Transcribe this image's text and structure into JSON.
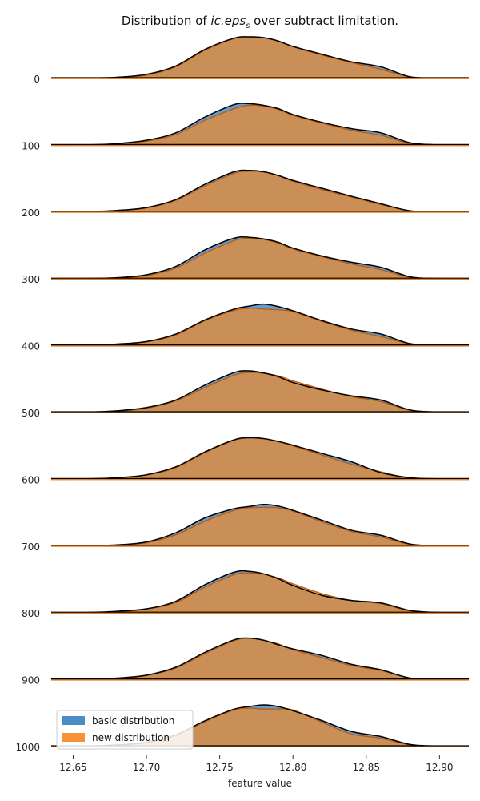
{
  "chart_data": {
    "type": "area",
    "title": "Distribution of ic.eps_s over subtract limitation.",
    "title_prefix": "Distribution of ",
    "title_var_main": "ic.eps",
    "title_var_sub": "s",
    "title_suffix": " over subtract limitation.",
    "xlabel": "feature value",
    "ylabel": "",
    "xlim": [
      12.635,
      12.92
    ],
    "x_ticks": [
      12.65,
      12.7,
      12.75,
      12.8,
      12.85,
      12.9
    ],
    "x_tick_labels": [
      "12.65",
      "12.70",
      "12.75",
      "12.80",
      "12.85",
      "12.90"
    ],
    "x": [
      12.64,
      12.66,
      12.68,
      12.7,
      12.72,
      12.74,
      12.76,
      12.77,
      12.78,
      12.79,
      12.8,
      12.82,
      12.84,
      12.86,
      12.88,
      12.9,
      12.92
    ],
    "legend": {
      "position": "lower-left",
      "entries": [
        {
          "label": "basic distribution",
          "color": "#4a8cc4"
        },
        {
          "label": "new distribution",
          "color": "#f5923a"
        }
      ]
    },
    "colors": {
      "basic": "#3a7fbf",
      "new": "#f08a2a",
      "overlap": "#c98c55",
      "outline": "#000000",
      "new_line": "#b85a10",
      "baseline": "#e67e22"
    },
    "ridges": [
      {
        "label": "0",
        "basic": [
          0,
          0.01,
          0.03,
          0.1,
          0.3,
          0.7,
          0.97,
          1.0,
          0.98,
          0.9,
          0.77,
          0.58,
          0.4,
          0.28,
          0.04,
          0.01,
          0
        ],
        "new": [
          0,
          0.01,
          0.02,
          0.08,
          0.28,
          0.68,
          0.96,
          1.0,
          0.98,
          0.89,
          0.76,
          0.56,
          0.38,
          0.22,
          0.03,
          0,
          0
        ]
      },
      {
        "label": "100",
        "basic": [
          0,
          0.01,
          0.04,
          0.12,
          0.3,
          0.68,
          0.98,
          1.0,
          0.96,
          0.88,
          0.74,
          0.55,
          0.4,
          0.3,
          0.06,
          0.01,
          0
        ],
        "new": [
          0,
          0.01,
          0.03,
          0.1,
          0.26,
          0.6,
          0.88,
          0.96,
          0.94,
          0.86,
          0.72,
          0.53,
          0.36,
          0.24,
          0.04,
          0.01,
          0
        ]
      },
      {
        "label": "200",
        "basic": [
          0,
          0.01,
          0.04,
          0.11,
          0.3,
          0.67,
          0.97,
          1.0,
          0.97,
          0.88,
          0.76,
          0.57,
          0.38,
          0.2,
          0.03,
          0.01,
          0
        ],
        "new": [
          0,
          0.01,
          0.03,
          0.1,
          0.28,
          0.63,
          0.93,
          0.98,
          0.96,
          0.87,
          0.74,
          0.54,
          0.36,
          0.18,
          0.03,
          0.01,
          0
        ]
      },
      {
        "label": "300",
        "basic": [
          0,
          0.01,
          0.03,
          0.1,
          0.3,
          0.7,
          0.98,
          1.0,
          0.96,
          0.88,
          0.74,
          0.55,
          0.4,
          0.28,
          0.05,
          0.01,
          0
        ],
        "new": [
          0,
          0.01,
          0.02,
          0.08,
          0.26,
          0.62,
          0.92,
          0.98,
          0.95,
          0.86,
          0.72,
          0.53,
          0.36,
          0.22,
          0.04,
          0.01,
          0
        ]
      },
      {
        "label": "400",
        "basic": [
          0,
          0.01,
          0.04,
          0.1,
          0.28,
          0.62,
          0.88,
          0.95,
          1.0,
          0.94,
          0.84,
          0.6,
          0.4,
          0.28,
          0.05,
          0.01,
          0
        ],
        "new": [
          0,
          0.01,
          0.03,
          0.09,
          0.26,
          0.6,
          0.85,
          0.9,
          0.88,
          0.86,
          0.82,
          0.58,
          0.37,
          0.22,
          0.04,
          0.01,
          0
        ]
      },
      {
        "label": "500",
        "basic": [
          0,
          0.01,
          0.04,
          0.12,
          0.3,
          0.66,
          0.96,
          1.0,
          0.95,
          0.86,
          0.72,
          0.54,
          0.4,
          0.3,
          0.06,
          0.01,
          0
        ],
        "new": [
          0,
          0.01,
          0.03,
          0.1,
          0.28,
          0.6,
          0.9,
          0.96,
          0.94,
          0.88,
          0.76,
          0.56,
          0.38,
          0.26,
          0.05,
          0.01,
          0
        ]
      },
      {
        "label": "600",
        "basic": [
          0,
          0.01,
          0.04,
          0.11,
          0.3,
          0.66,
          0.95,
          1.0,
          0.98,
          0.91,
          0.82,
          0.62,
          0.42,
          0.16,
          0.04,
          0.01,
          0
        ],
        "new": [
          0,
          0.01,
          0.03,
          0.1,
          0.28,
          0.64,
          0.94,
          0.99,
          0.97,
          0.9,
          0.8,
          0.58,
          0.36,
          0.18,
          0.03,
          0.01,
          0
        ]
      },
      {
        "label": "700",
        "basic": [
          0,
          0.01,
          0.03,
          0.1,
          0.32,
          0.68,
          0.9,
          0.95,
          1.0,
          0.96,
          0.86,
          0.62,
          0.38,
          0.26,
          0.05,
          0.01,
          0
        ],
        "new": [
          0,
          0.01,
          0.02,
          0.08,
          0.27,
          0.6,
          0.86,
          0.92,
          0.93,
          0.92,
          0.84,
          0.58,
          0.35,
          0.22,
          0.04,
          0.01,
          0
        ]
      },
      {
        "label": "800",
        "basic": [
          0,
          0.01,
          0.04,
          0.1,
          0.28,
          0.68,
          0.98,
          1.0,
          0.94,
          0.82,
          0.66,
          0.42,
          0.3,
          0.24,
          0.06,
          0.01,
          0
        ],
        "new": [
          0,
          0.01,
          0.03,
          0.09,
          0.25,
          0.62,
          0.92,
          0.96,
          0.93,
          0.84,
          0.7,
          0.46,
          0.3,
          0.22,
          0.05,
          0.01,
          0
        ]
      },
      {
        "label": "900",
        "basic": [
          0,
          0.01,
          0.04,
          0.11,
          0.3,
          0.66,
          0.96,
          1.0,
          0.95,
          0.84,
          0.74,
          0.58,
          0.37,
          0.24,
          0.04,
          0.01,
          0
        ],
        "new": [
          0,
          0.01,
          0.03,
          0.1,
          0.28,
          0.63,
          0.94,
          1.0,
          0.94,
          0.86,
          0.72,
          0.53,
          0.34,
          0.22,
          0.04,
          0.01,
          0
        ]
      },
      {
        "label": "1000",
        "basic": [
          0,
          0.01,
          0.04,
          0.1,
          0.28,
          0.62,
          0.9,
          0.96,
          1.0,
          0.96,
          0.86,
          0.62,
          0.36,
          0.24,
          0.05,
          0.01,
          0
        ],
        "new": [
          0,
          0.01,
          0.03,
          0.09,
          0.26,
          0.6,
          0.88,
          0.92,
          0.9,
          0.9,
          0.88,
          0.58,
          0.3,
          0.2,
          0.04,
          0.01,
          0
        ]
      }
    ]
  }
}
